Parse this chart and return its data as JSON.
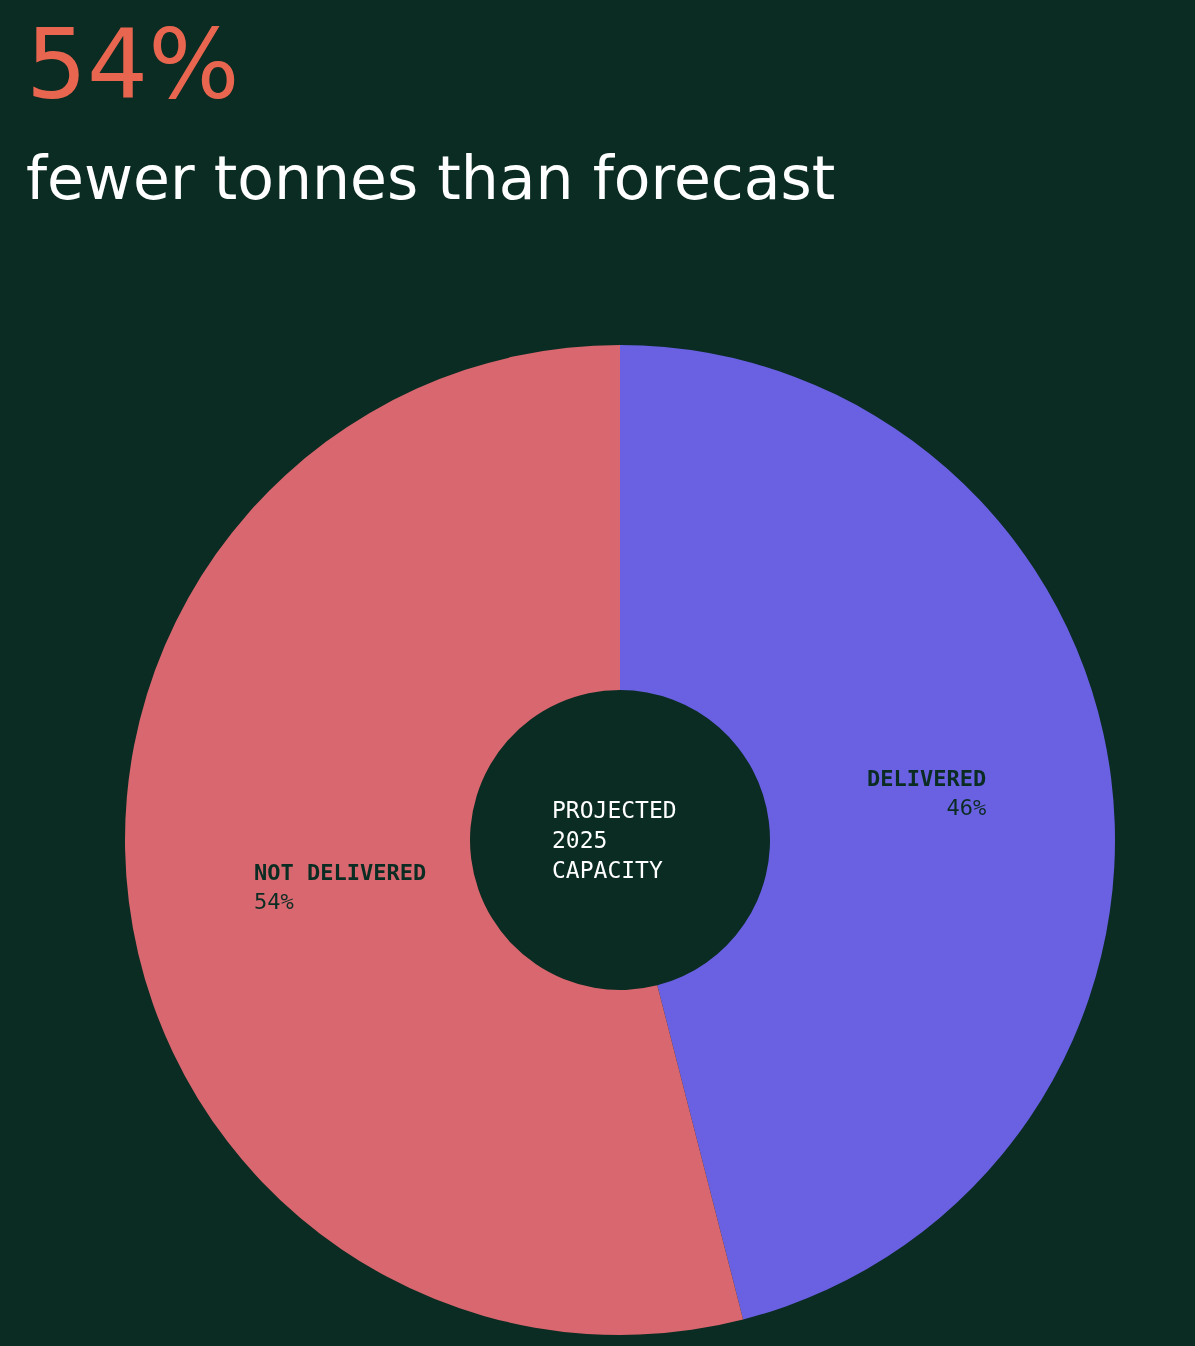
{
  "chart_data": {
    "type": "donut",
    "title": "54%",
    "subtitle": "fewer tonnes than forecast",
    "categories": [
      "DELIVERED",
      "NOT DELIVERED"
    ],
    "values": [
      46,
      54
    ],
    "value_labels": [
      "46%",
      "54%"
    ],
    "colors": [
      "#6a60e2",
      "#d8676f"
    ],
    "annotations": [
      "PROJECTED 2025 CAPACITY"
    ],
    "legend": false
  }
}
